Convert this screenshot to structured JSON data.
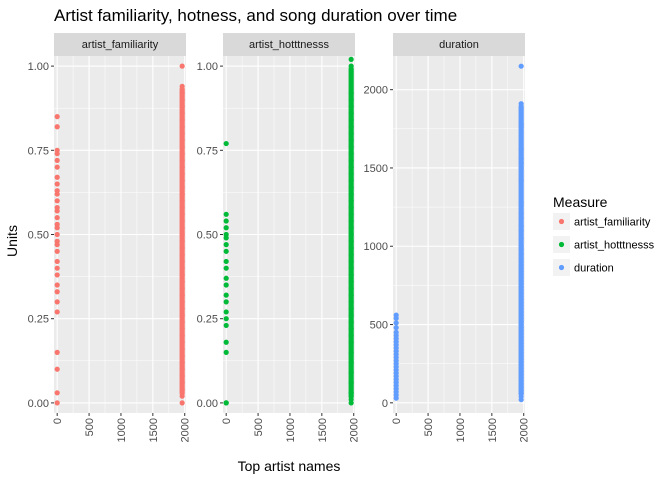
{
  "chart_data": {
    "type": "scatter",
    "title": "Artist familiarity, hotness, and song duration over time",
    "xlabel": "Top artist names",
    "ylabel": "Units",
    "legend": {
      "title": "Measure",
      "placement": "right",
      "entries": [
        "artist_familiarity",
        "artist_hotttnesss",
        "duration"
      ]
    },
    "colors": {
      "artist_familiarity": "#F8766D",
      "artist_hotttnesss": "#00BA38",
      "duration": "#619CFF",
      "panel_bg": "#EBEBEB",
      "strip_bg": "#D9D9D9",
      "grid": "#FFFFFF"
    },
    "grid": true,
    "facets": [
      {
        "name": "artist_familiarity",
        "strip_label": "artist_familiarity",
        "color": "#F8766D",
        "xlim": [
          -50,
          2020
        ],
        "ylim": [
          -0.03,
          1.03
        ],
        "x_ticks": [
          0,
          500,
          1000,
          1500,
          2000
        ],
        "x_tick_labels": [
          "0",
          "500",
          "1000",
          "1500",
          "2000"
        ],
        "y_ticks": [
          0,
          0.25,
          0.5,
          0.75,
          1.0
        ],
        "y_tick_labels": [
          "0.00",
          "0.25",
          "0.50",
          "0.75",
          "1.00"
        ],
        "x0_values": [
          0.0,
          0.03,
          0.1,
          0.15,
          0.27,
          0.3,
          0.33,
          0.35,
          0.38,
          0.4,
          0.42,
          0.45,
          0.47,
          0.48,
          0.5,
          0.52,
          0.53,
          0.55,
          0.57,
          0.58,
          0.6,
          0.62,
          0.63,
          0.65,
          0.67,
          0.7,
          0.72,
          0.74,
          0.75,
          0.82,
          0.85
        ],
        "x_year": 1960,
        "year_values": [
          0.0,
          0.02,
          0.04,
          0.06,
          0.08,
          0.1,
          0.12,
          0.14,
          0.16,
          0.18,
          0.2,
          0.22,
          0.24,
          0.26,
          0.28,
          0.3,
          0.32,
          0.34,
          0.36,
          0.38,
          0.4,
          0.42,
          0.44,
          0.46,
          0.48,
          0.5,
          0.52,
          0.54,
          0.56,
          0.58,
          0.6,
          0.62,
          0.64,
          0.66,
          0.68,
          0.7,
          0.72,
          0.74,
          0.76,
          0.78,
          0.8,
          0.82,
          0.84,
          0.86,
          0.88,
          0.9,
          0.92,
          0.94,
          1.0
        ]
      },
      {
        "name": "artist_hotttnesss",
        "strip_label": "artist_hotttnesss",
        "color": "#00BA38",
        "xlim": [
          -50,
          2020
        ],
        "ylim": [
          -0.03,
          1.03
        ],
        "x_ticks": [
          0,
          500,
          1000,
          1500,
          2000
        ],
        "x_tick_labels": [
          "0",
          "500",
          "1000",
          "1500",
          "2000"
        ],
        "y_ticks": [
          0,
          0.25,
          0.5,
          0.75,
          1.0
        ],
        "y_tick_labels": [
          "0.00",
          "0.25",
          "0.50",
          "0.75",
          "1.00"
        ],
        "x0_values": [
          0.0,
          0.0,
          0.15,
          0.18,
          0.23,
          0.25,
          0.27,
          0.3,
          0.32,
          0.35,
          0.37,
          0.4,
          0.42,
          0.45,
          0.47,
          0.49,
          0.5,
          0.52,
          0.54,
          0.56,
          0.77
        ],
        "x_year": 1960,
        "year_values": [
          0.0,
          0.01,
          0.03,
          0.06,
          0.09,
          0.12,
          0.15,
          0.18,
          0.2,
          0.22,
          0.24,
          0.26,
          0.28,
          0.3,
          0.32,
          0.34,
          0.36,
          0.38,
          0.4,
          0.42,
          0.44,
          0.46,
          0.48,
          0.5,
          0.52,
          0.54,
          0.56,
          0.58,
          0.6,
          0.62,
          0.64,
          0.66,
          0.68,
          0.7,
          0.72,
          0.74,
          0.76,
          0.78,
          0.8,
          0.82,
          0.84,
          0.86,
          0.88,
          0.9,
          0.92,
          1.0,
          1.02
        ]
      },
      {
        "name": "duration",
        "strip_label": "duration",
        "color": "#619CFF",
        "xlim": [
          -50,
          2020
        ],
        "ylim": [
          -65,
          2215
        ],
        "x_ticks": [
          0,
          500,
          1000,
          1500,
          2000
        ],
        "x_tick_labels": [
          "0",
          "500",
          "1000",
          "1500",
          "2000"
        ],
        "y_ticks": [
          0,
          500,
          1000,
          1500,
          2000
        ],
        "y_tick_labels": [
          "0",
          "500",
          "1000",
          "1500",
          "2000"
        ],
        "x0_values": [
          30,
          50,
          70,
          90,
          110,
          130,
          150,
          170,
          190,
          210,
          230,
          250,
          270,
          290,
          310,
          330,
          350,
          370,
          390,
          410,
          430,
          450,
          480,
          510,
          540,
          560
        ],
        "x_year": 1960,
        "year_values": [
          20,
          40,
          60,
          80,
          100,
          120,
          140,
          160,
          180,
          200,
          220,
          240,
          260,
          280,
          300,
          320,
          340,
          360,
          380,
          400,
          420,
          440,
          460,
          480,
          500,
          520,
          540,
          560,
          580,
          600,
          620,
          640,
          660,
          680,
          700,
          720,
          740,
          760,
          780,
          800,
          820,
          840,
          860,
          880,
          900,
          920,
          950,
          980,
          1000,
          1050,
          1100,
          1130,
          1180,
          1210,
          1260,
          1280,
          1420,
          1500,
          1530,
          1560,
          1620,
          1760,
          1780,
          1910,
          2150
        ]
      }
    ]
  }
}
